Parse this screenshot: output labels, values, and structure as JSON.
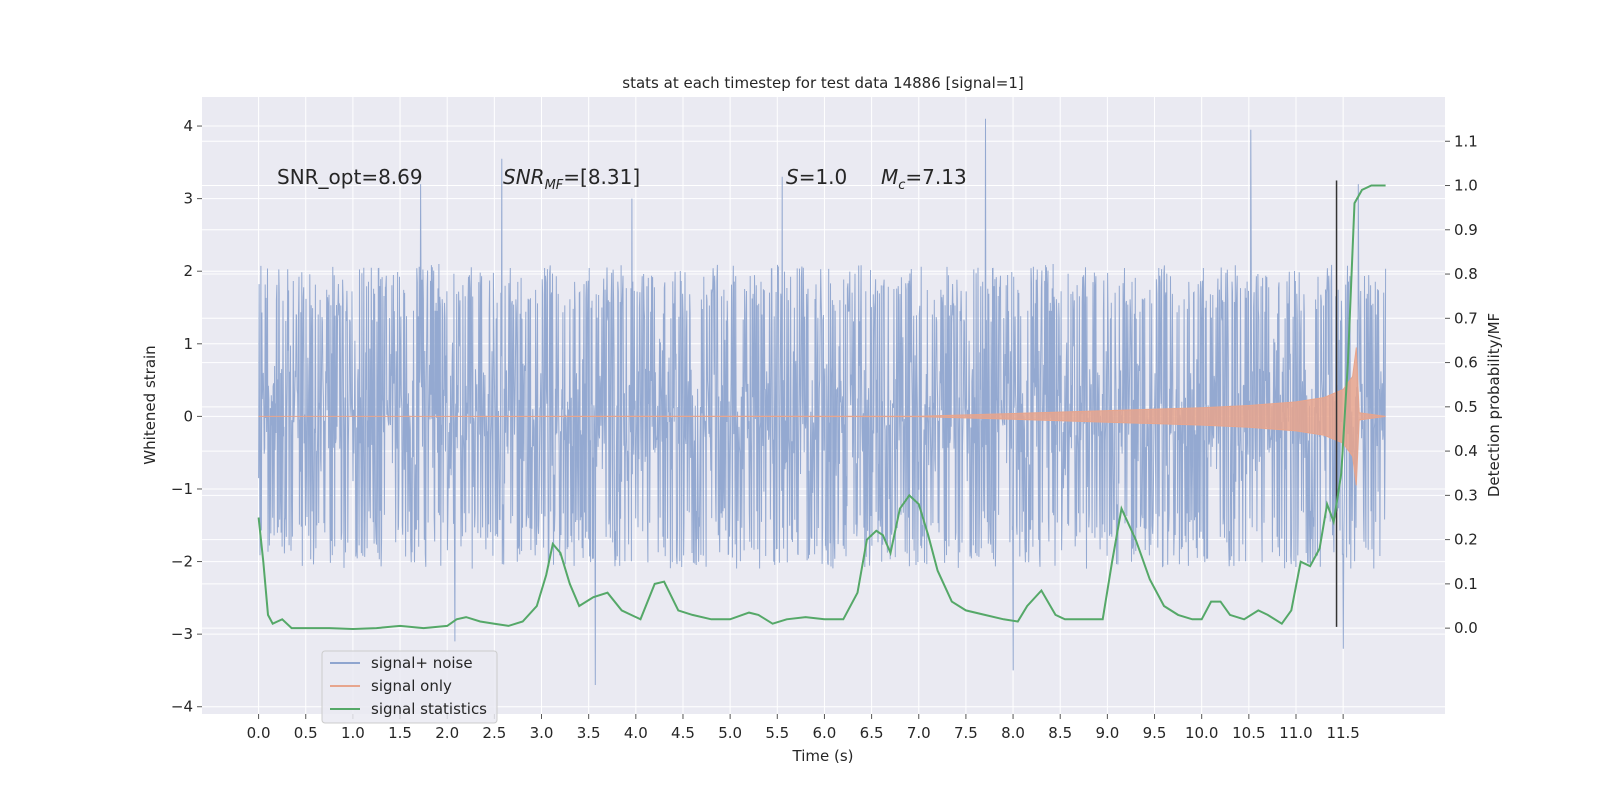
{
  "chart_data": {
    "type": "line",
    "title": "stats at each timestep for test data 14886 [signal=1]",
    "xlabel": "Time (s)",
    "ylabel": "Whitened strain",
    "y2label": "Detection probability/MF",
    "xlim": [
      -0.6,
      12.58
    ],
    "ylim": [
      -4.1,
      4.4
    ],
    "y2lim": [
      -0.194,
      1.2
    ],
    "x_ticks": [
      "0.0",
      "0.5",
      "1.0",
      "1.5",
      "2.0",
      "2.5",
      "3.0",
      "3.5",
      "4.0",
      "4.5",
      "5.0",
      "5.5",
      "6.0",
      "6.5",
      "7.0",
      "7.5",
      "8.0",
      "8.5",
      "9.0",
      "9.5",
      "10.0",
      "10.5",
      "11.0",
      "11.5"
    ],
    "y_ticks": [
      "−4",
      "−3",
      "−2",
      "−1",
      "0",
      "1",
      "2",
      "3",
      "4"
    ],
    "y2_ticks": [
      "0.0",
      "0.1",
      "0.2",
      "0.3",
      "0.4",
      "0.5",
      "0.6",
      "0.7",
      "0.8",
      "0.9",
      "1.0",
      "1.1"
    ],
    "grid": true,
    "legend_position": "lower-left",
    "annotations": {
      "snr_opt": "SNR_opt=8.69",
      "snr_mf_main": "SNR",
      "snr_mf_sub": "MF",
      "snr_mf_rest": "=[8.31]",
      "s_main": "S",
      "s_rest": "=1.0",
      "mc_main": "M",
      "mc_sub": "c",
      "mc_rest": "=7.13"
    },
    "vertical_marker_x": 11.43,
    "series": [
      {
        "name": "signal+ noise",
        "color": "#8fa5cf",
        "description_envelope": {
          "x_range": [
            0.0,
            11.95
          ],
          "typical_range": [
            -1.7,
            1.9
          ],
          "extreme_peaks": [
            {
              "x": 1.72,
              "y": 3.2
            },
            {
              "x": 2.08,
              "y": -3.1
            },
            {
              "x": 2.58,
              "y": 3.55
            },
            {
              "x": 3.57,
              "y": -3.7
            },
            {
              "x": 3.96,
              "y": 3.0
            },
            {
              "x": 5.55,
              "y": 3.3
            },
            {
              "x": 7.71,
              "y": 4.1
            },
            {
              "x": 8.0,
              "y": -3.5
            },
            {
              "x": 10.52,
              "y": 3.95
            },
            {
              "x": 11.5,
              "y": -3.2
            },
            {
              "x": 11.66,
              "y": 3.2
            }
          ]
        }
      },
      {
        "name": "signal only",
        "color": "#e7a58d",
        "envelope": [
          [
            0.0,
            0.0
          ],
          [
            7.0,
            0.003
          ],
          [
            8.0,
            0.04
          ],
          [
            9.0,
            0.08
          ],
          [
            10.0,
            0.12
          ],
          [
            10.5,
            0.15
          ],
          [
            11.0,
            0.2
          ],
          [
            11.3,
            0.26
          ],
          [
            11.5,
            0.37
          ],
          [
            11.6,
            0.55
          ],
          [
            11.64,
            0.95
          ],
          [
            11.67,
            0.05
          ],
          [
            11.95,
            0.0
          ]
        ]
      },
      {
        "name": "signal statistics",
        "color": "#55a868",
        "axis": "right",
        "x": [
          0.0,
          0.05,
          0.1,
          0.15,
          0.2,
          0.25,
          0.35,
          0.5,
          0.75,
          1.0,
          1.25,
          1.5,
          1.75,
          2.0,
          2.1,
          2.2,
          2.35,
          2.5,
          2.65,
          2.8,
          2.95,
          3.05,
          3.12,
          3.2,
          3.3,
          3.4,
          3.55,
          3.7,
          3.85,
          4.05,
          4.2,
          4.3,
          4.45,
          4.6,
          4.8,
          5.0,
          5.2,
          5.3,
          5.45,
          5.6,
          5.8,
          6.0,
          6.2,
          6.35,
          6.45,
          6.55,
          6.62,
          6.7,
          6.8,
          6.9,
          7.0,
          7.1,
          7.2,
          7.35,
          7.5,
          7.7,
          7.9,
          8.05,
          8.15,
          8.3,
          8.45,
          8.55,
          8.7,
          8.85,
          8.95,
          9.05,
          9.15,
          9.3,
          9.45,
          9.6,
          9.75,
          9.9,
          10.0,
          10.1,
          10.2,
          10.3,
          10.45,
          10.6,
          10.7,
          10.85,
          10.95,
          11.05,
          11.15,
          11.25,
          11.33,
          11.4,
          11.48,
          11.55,
          11.62,
          11.7,
          11.8,
          11.95
        ],
        "y": [
          0.25,
          0.15,
          0.03,
          0.01,
          0.015,
          0.02,
          0.0,
          0.0,
          0.0,
          -0.002,
          0.0,
          0.005,
          0.0,
          0.005,
          0.02,
          0.025,
          0.015,
          0.01,
          0.005,
          0.015,
          0.05,
          0.12,
          0.19,
          0.17,
          0.1,
          0.05,
          0.07,
          0.08,
          0.04,
          0.02,
          0.1,
          0.105,
          0.04,
          0.03,
          0.02,
          0.02,
          0.035,
          0.03,
          0.01,
          0.02,
          0.025,
          0.02,
          0.02,
          0.08,
          0.2,
          0.22,
          0.21,
          0.17,
          0.27,
          0.3,
          0.28,
          0.21,
          0.13,
          0.06,
          0.04,
          0.03,
          0.02,
          0.015,
          0.05,
          0.085,
          0.03,
          0.02,
          0.02,
          0.02,
          0.02,
          0.15,
          0.27,
          0.2,
          0.11,
          0.05,
          0.03,
          0.02,
          0.02,
          0.06,
          0.06,
          0.03,
          0.02,
          0.04,
          0.03,
          0.01,
          0.04,
          0.15,
          0.14,
          0.18,
          0.28,
          0.24,
          0.35,
          0.6,
          0.96,
          0.99,
          1.0,
          1.0
        ]
      }
    ]
  }
}
